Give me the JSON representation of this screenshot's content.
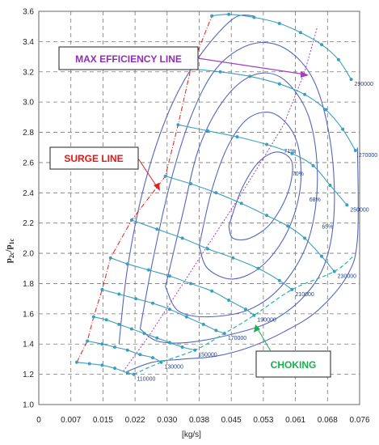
{
  "chart_data": {
    "type": "line",
    "xlabel": "[kg/s]",
    "ylabel": "p2c/p1c",
    "ylabel_main": "p",
    "ylabel_sub_num": "2c",
    "ylabel_div": "/p",
    "ylabel_sub_den": "1c",
    "xlim": [
      0,
      0.076
    ],
    "ylim": [
      1.0,
      3.6
    ],
    "x_ticks": [
      "0",
      "0.007",
      "0.015",
      "0.022",
      "0.030",
      "0.038",
      "0.045",
      "0.053",
      "0.061",
      "0.068",
      "0.076"
    ],
    "y_ticks": [
      "1.0",
      "1.2",
      "1.4",
      "1.6",
      "1.8",
      "2.0",
      "2.2",
      "2.4",
      "2.6",
      "2.8",
      "3.0",
      "3.2",
      "3.4",
      "3.6"
    ],
    "grid": true,
    "annotations": {
      "max_efficiency": "MAX EFFICIENCY LINE",
      "surge": "SURGE LINE",
      "choking": "CHOKING"
    },
    "colors": {
      "speed_line": "#3a9fbf",
      "efficiency_contour": "#5566bb",
      "surge_line": "#e02020",
      "max_eff_line": "#a040c0",
      "choke_line": "#20b8a0",
      "grid": "#777777",
      "annotation_max_eff_text": "#8e2fb3",
      "annotation_surge_text": "#e01818",
      "annotation_choke_text": "#18b050"
    },
    "speed_lines": [
      {
        "label": "110000",
        "points": [
          [
            0.009,
            1.28
          ],
          [
            0.012,
            1.27
          ],
          [
            0.015,
            1.26
          ],
          [
            0.018,
            1.24
          ],
          [
            0.021,
            1.21
          ],
          [
            0.0225,
            1.2
          ]
        ]
      },
      {
        "label": "130000",
        "points": [
          [
            0.0115,
            1.42
          ],
          [
            0.015,
            1.4
          ],
          [
            0.018,
            1.38
          ],
          [
            0.021,
            1.36
          ],
          [
            0.024,
            1.33
          ],
          [
            0.027,
            1.31
          ],
          [
            0.029,
            1.28
          ]
        ]
      },
      {
        "label": "150000",
        "points": [
          [
            0.013,
            1.58
          ],
          [
            0.016,
            1.56
          ],
          [
            0.019,
            1.53
          ],
          [
            0.022,
            1.5
          ],
          [
            0.025,
            1.47
          ],
          [
            0.028,
            1.44
          ],
          [
            0.031,
            1.41
          ],
          [
            0.034,
            1.38
          ],
          [
            0.037,
            1.36
          ]
        ]
      },
      {
        "label": "170000",
        "points": [
          [
            0.015,
            1.76
          ],
          [
            0.019,
            1.73
          ],
          [
            0.023,
            1.7
          ],
          [
            0.027,
            1.67
          ],
          [
            0.031,
            1.63
          ],
          [
            0.035,
            1.58
          ],
          [
            0.039,
            1.53
          ],
          [
            0.042,
            1.49
          ],
          [
            0.044,
            1.47
          ]
        ]
      },
      {
        "label": "190000",
        "points": [
          [
            0.017,
            1.97
          ],
          [
            0.021,
            1.93
          ],
          [
            0.026,
            1.89
          ],
          [
            0.031,
            1.85
          ],
          [
            0.036,
            1.8
          ],
          [
            0.041,
            1.75
          ],
          [
            0.045,
            1.69
          ],
          [
            0.049,
            1.63
          ],
          [
            0.051,
            1.59
          ]
        ]
      },
      {
        "label": "210000",
        "points": [
          [
            0.022,
            2.22
          ],
          [
            0.028,
            2.16
          ],
          [
            0.034,
            2.1
          ],
          [
            0.04,
            2.03
          ],
          [
            0.046,
            1.97
          ],
          [
            0.052,
            1.9
          ],
          [
            0.057,
            1.82
          ],
          [
            0.06,
            1.76
          ]
        ]
      },
      {
        "label": "230000",
        "points": [
          [
            0.03,
            2.51
          ],
          [
            0.036,
            2.46
          ],
          [
            0.042,
            2.4
          ],
          [
            0.048,
            2.33
          ],
          [
            0.054,
            2.25
          ],
          [
            0.059,
            2.18
          ],
          [
            0.063,
            2.1
          ],
          [
            0.067,
            1.98
          ],
          [
            0.07,
            1.88
          ]
        ]
      },
      {
        "label": "250000",
        "points": [
          [
            0.033,
            2.85
          ],
          [
            0.04,
            2.81
          ],
          [
            0.047,
            2.77
          ],
          [
            0.054,
            2.72
          ],
          [
            0.06,
            2.66
          ],
          [
            0.065,
            2.58
          ],
          [
            0.069,
            2.45
          ],
          [
            0.073,
            2.32
          ]
        ]
      },
      {
        "label": "270000",
        "points": [
          [
            0.036,
            3.22
          ],
          [
            0.043,
            3.2
          ],
          [
            0.05,
            3.17
          ],
          [
            0.057,
            3.12
          ],
          [
            0.063,
            3.05
          ],
          [
            0.068,
            2.95
          ],
          [
            0.072,
            2.82
          ],
          [
            0.075,
            2.68
          ]
        ]
      },
      {
        "label": "290000",
        "points": [
          [
            0.041,
            3.57
          ],
          [
            0.045,
            3.58
          ],
          [
            0.051,
            3.56
          ],
          [
            0.057,
            3.52
          ],
          [
            0.062,
            3.46
          ],
          [
            0.067,
            3.38
          ],
          [
            0.071,
            3.28
          ],
          [
            0.074,
            3.15
          ]
        ]
      }
    ],
    "efficiency_contours": [
      {
        "label": "71%",
        "label_at": [
          0.0575,
          2.68
        ],
        "points": [
          [
            0.045,
            2.18
          ],
          [
            0.048,
            2.42
          ],
          [
            0.052,
            2.6
          ],
          [
            0.0565,
            2.67
          ],
          [
            0.06,
            2.6
          ],
          [
            0.059,
            2.4
          ],
          [
            0.055,
            2.2
          ],
          [
            0.05,
            2.1
          ],
          [
            0.046,
            2.1
          ],
          [
            0.045,
            2.18
          ]
        ]
      },
      {
        "label": "70%",
        "label_at": [
          0.0595,
          2.53
        ],
        "points": [
          [
            0.038,
            2.05
          ],
          [
            0.041,
            2.42
          ],
          [
            0.045,
            2.72
          ],
          [
            0.05,
            2.9
          ],
          [
            0.056,
            2.92
          ],
          [
            0.061,
            2.75
          ],
          [
            0.062,
            2.45
          ],
          [
            0.059,
            2.15
          ],
          [
            0.053,
            1.92
          ],
          [
            0.046,
            1.83
          ],
          [
            0.04,
            1.9
          ],
          [
            0.038,
            2.05
          ]
        ]
      },
      {
        "label": "68%",
        "label_at": [
          0.0635,
          2.36
        ],
        "points": [
          [
            0.03,
            1.78
          ],
          [
            0.034,
            2.25
          ],
          [
            0.038,
            2.7
          ],
          [
            0.044,
            3.02
          ],
          [
            0.051,
            3.18
          ],
          [
            0.058,
            3.15
          ],
          [
            0.064,
            2.9
          ],
          [
            0.066,
            2.5
          ],
          [
            0.064,
            2.1
          ],
          [
            0.058,
            1.8
          ],
          [
            0.05,
            1.63
          ],
          [
            0.04,
            1.58
          ],
          [
            0.033,
            1.62
          ],
          [
            0.03,
            1.78
          ]
        ]
      },
      {
        "label": "65%",
        "label_at": [
          0.0665,
          2.18
        ],
        "points": [
          [
            0.024,
            1.5
          ],
          [
            0.027,
            1.95
          ],
          [
            0.031,
            2.45
          ],
          [
            0.036,
            2.9
          ],
          [
            0.042,
            3.22
          ],
          [
            0.05,
            3.38
          ],
          [
            0.058,
            3.36
          ],
          [
            0.065,
            3.15
          ],
          [
            0.069,
            2.75
          ],
          [
            0.07,
            2.3
          ],
          [
            0.068,
            1.95
          ],
          [
            0.063,
            1.72
          ],
          [
            0.055,
            1.55
          ],
          [
            0.045,
            1.46
          ],
          [
            0.035,
            1.41
          ],
          [
            0.028,
            1.42
          ],
          [
            0.024,
            1.5
          ]
        ]
      },
      {
        "label": "",
        "label_at": null,
        "points": [
          [
            0.019,
            1.4
          ],
          [
            0.021,
            1.9
          ],
          [
            0.025,
            2.45
          ],
          [
            0.031,
            2.95
          ],
          [
            0.038,
            3.3
          ],
          [
            0.046,
            3.55
          ],
          [
            0.051,
            3.57
          ]
        ]
      },
      {
        "label": "",
        "label_at": null,
        "points": [
          [
            0.021,
            1.22
          ],
          [
            0.027,
            1.28
          ],
          [
            0.034,
            1.3
          ],
          [
            0.042,
            1.32
          ],
          [
            0.05,
            1.38
          ],
          [
            0.058,
            1.48
          ],
          [
            0.066,
            1.62
          ],
          [
            0.073,
            1.85
          ],
          [
            0.0755,
            2.1
          ],
          [
            0.0755,
            2.7
          ]
        ]
      }
    ],
    "surge_line": [
      [
        0.009,
        1.28
      ],
      [
        0.0115,
        1.42
      ],
      [
        0.013,
        1.58
      ],
      [
        0.015,
        1.76
      ],
      [
        0.017,
        1.97
      ],
      [
        0.022,
        2.22
      ],
      [
        0.03,
        2.51
      ],
      [
        0.033,
        2.85
      ],
      [
        0.036,
        3.22
      ],
      [
        0.041,
        3.57
      ]
    ],
    "max_efficiency_line": [
      [
        0.02,
        1.22
      ],
      [
        0.026,
        1.45
      ],
      [
        0.033,
        1.75
      ],
      [
        0.04,
        2.05
      ],
      [
        0.047,
        2.35
      ],
      [
        0.053,
        2.62
      ],
      [
        0.058,
        2.85
      ],
      [
        0.063,
        3.2
      ],
      [
        0.066,
        3.5
      ]
    ],
    "choke_line": [
      [
        0.0225,
        1.2
      ],
      [
        0.029,
        1.28
      ],
      [
        0.037,
        1.36
      ],
      [
        0.044,
        1.47
      ],
      [
        0.051,
        1.59
      ],
      [
        0.06,
        1.76
      ],
      [
        0.07,
        1.88
      ],
      [
        0.0745,
        1.98
      ]
    ]
  }
}
